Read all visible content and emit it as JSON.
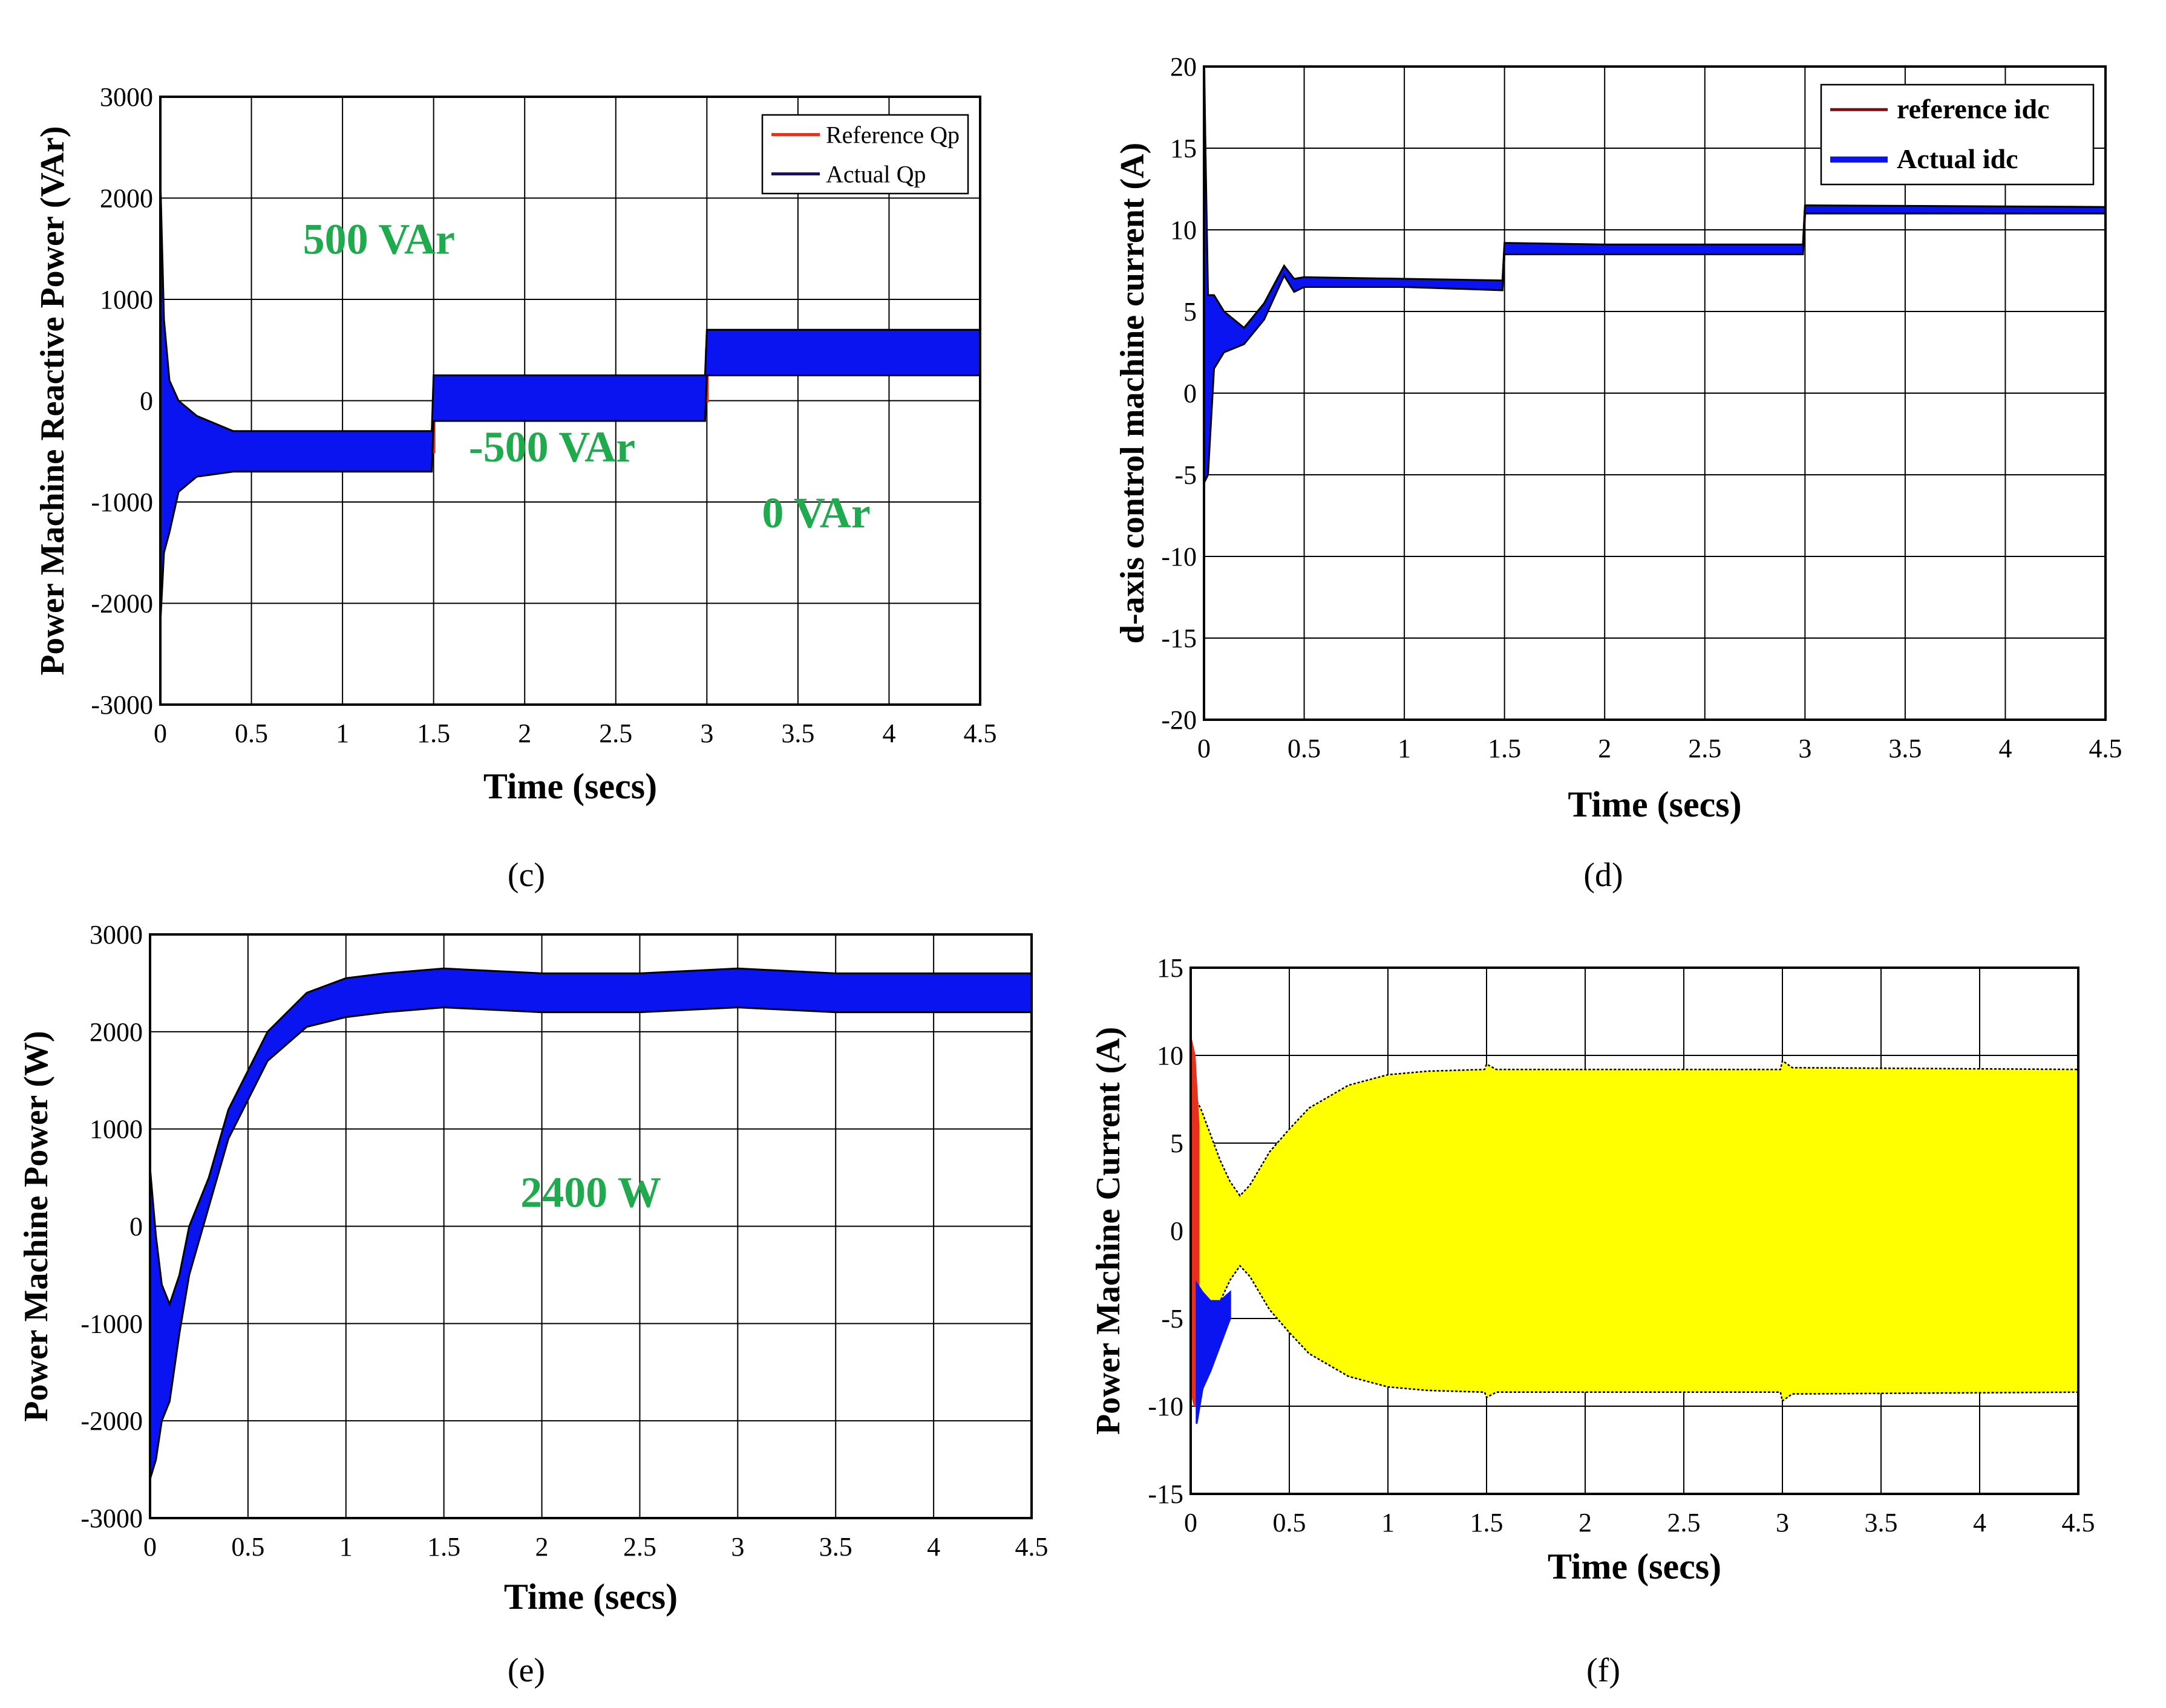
{
  "figure": {
    "panel_labels": [
      "(c)",
      "(d)",
      "(e)",
      "(f)"
    ]
  },
  "colors": {
    "actual": "#0a14f0",
    "actual_edge": "#000000",
    "reference": "#e8301e",
    "annotation": "#1faa4e",
    "yellow_fill": "#ffff00",
    "grid": "#000000"
  },
  "chart_data": [
    {
      "id": "c",
      "type": "line",
      "title": "",
      "xlabel": "Time (secs)",
      "ylabel": "Power Machine Reactive Power (VAr)",
      "xlim": [
        0,
        4.5
      ],
      "ylim": [
        -3000,
        3000
      ],
      "xticks": [
        0,
        0.5,
        1,
        1.5,
        2,
        2.5,
        3,
        3.5,
        4,
        4.5
      ],
      "yticks": [
        -3000,
        -2000,
        -1000,
        0,
        1000,
        2000,
        3000
      ],
      "xtick_labels": [
        "0",
        "0.5",
        "1",
        "1.5",
        "2",
        "2.5",
        "3",
        "3.5",
        "4",
        "4.5"
      ],
      "ytick_labels": [
        "-3000",
        "-2000",
        "-1000",
        "0",
        "1000",
        "2000",
        "3000"
      ],
      "grid": true,
      "legend": {
        "position": "top-right",
        "entries": [
          "Reference Qp",
          "Actual Qp"
        ]
      },
      "annotations": [
        {
          "text": "500 VAr",
          "x": 1.2,
          "y": 1450
        },
        {
          "text": "-500 VAr",
          "x": 2.15,
          "y": -600
        },
        {
          "text": "0 VAr",
          "x": 3.6,
          "y": -1250
        }
      ],
      "series": [
        {
          "name": "Reference Qp",
          "x": [
            0,
            1.5,
            1.5,
            3,
            3,
            4.5
          ],
          "y": [
            -500,
            -500,
            0,
            0,
            500,
            500
          ]
        },
        {
          "name": "Actual Qp",
          "kind": "band",
          "x": [
            0,
            0.02,
            0.05,
            0.1,
            0.2,
            0.4,
            0.6,
            1.0,
            1.49,
            1.5,
            2.0,
            2.5,
            2.99,
            3.0,
            3.5,
            4.0,
            4.5
          ],
          "upper": [
            2200,
            800,
            200,
            0,
            -150,
            -300,
            -300,
            -300,
            -300,
            250,
            250,
            250,
            250,
            700,
            700,
            700,
            700
          ],
          "lower": [
            -2200,
            -1500,
            -1300,
            -900,
            -750,
            -700,
            -700,
            -700,
            -700,
            -200,
            -200,
            -200,
            -200,
            250,
            250,
            250,
            250
          ]
        }
      ]
    },
    {
      "id": "d",
      "type": "line",
      "title": "",
      "xlabel": "Time (secs)",
      "ylabel": "d-axis control machine current (A)",
      "xlim": [
        0,
        4.5
      ],
      "ylim": [
        -20,
        20
      ],
      "xticks": [
        0,
        0.5,
        1,
        1.5,
        2,
        2.5,
        3,
        3.5,
        4,
        4.5
      ],
      "yticks": [
        -20,
        -15,
        -10,
        -5,
        0,
        5,
        10,
        15,
        20
      ],
      "xtick_labels": [
        "0",
        "0.5",
        "1",
        "1.5",
        "2",
        "2.5",
        "3",
        "3.5",
        "4",
        "4.5"
      ],
      "ytick_labels": [
        "-20",
        "-15",
        "-10",
        "-5",
        "0",
        "5",
        "10",
        "15",
        "20"
      ],
      "grid": true,
      "legend": {
        "position": "top-right",
        "entries": [
          "reference idc",
          "Actual idc"
        ]
      },
      "annotations": [],
      "series": [
        {
          "name": "reference idc",
          "x": [
            0,
            0.02,
            0.05,
            0.1,
            0.2,
            0.3,
            0.4,
            0.45,
            0.5,
            1.0,
            1.49,
            1.5,
            2.0,
            2.99,
            3.0,
            4.5
          ],
          "y": [
            20,
            2,
            5,
            4,
            3.5,
            5,
            7.5,
            6.5,
            6.8,
            6.8,
            6.6,
            8.8,
            8.8,
            8.8,
            11.2,
            11.2
          ]
        },
        {
          "name": "Actual idc",
          "kind": "band",
          "x": [
            0,
            0.02,
            0.05,
            0.1,
            0.2,
            0.3,
            0.4,
            0.45,
            0.5,
            1.0,
            1.49,
            1.5,
            2.0,
            2.99,
            3.0,
            4.5
          ],
          "upper": [
            20,
            6,
            6,
            5,
            4,
            5.5,
            7.8,
            7.0,
            7.1,
            7.0,
            6.9,
            9.2,
            9.1,
            9.1,
            11.5,
            11.4
          ],
          "lower": [
            -5.5,
            -5,
            1.5,
            2.5,
            3,
            4.5,
            7.2,
            6.2,
            6.5,
            6.5,
            6.3,
            8.5,
            8.5,
            8.5,
            11.0,
            11.0
          ]
        }
      ]
    },
    {
      "id": "e",
      "type": "line",
      "title": "",
      "xlabel": "Time (secs)",
      "ylabel": "Power Machine Power (W)",
      "xlim": [
        0,
        4.5
      ],
      "ylim": [
        -3000,
        3000
      ],
      "xticks": [
        0,
        0.5,
        1,
        1.5,
        2,
        2.5,
        3,
        3.5,
        4,
        4.5
      ],
      "yticks": [
        -3000,
        -2000,
        -1000,
        0,
        1000,
        2000,
        3000
      ],
      "xtick_labels": [
        "0",
        "0.5",
        "1",
        "1.5",
        "2",
        "2.5",
        "3",
        "3.5",
        "4",
        "4.5"
      ],
      "ytick_labels": [
        "-3000",
        "-2000",
        "-1000",
        "0",
        "1000",
        "2000",
        "3000"
      ],
      "grid": true,
      "legend": null,
      "annotations": [
        {
          "text": "2400 W",
          "x": 2.25,
          "y": 200
        }
      ],
      "series": [
        {
          "name": "Actual power",
          "kind": "band",
          "x": [
            0,
            0.03,
            0.06,
            0.1,
            0.15,
            0.2,
            0.3,
            0.4,
            0.5,
            0.6,
            0.8,
            1.0,
            1.2,
            1.5,
            2.0,
            2.5,
            3.0,
            3.5,
            4.0,
            4.5
          ],
          "upper": [
            600,
            -100,
            -600,
            -800,
            -500,
            0,
            500,
            1200,
            1600,
            2000,
            2400,
            2550,
            2600,
            2650,
            2600,
            2600,
            2650,
            2600,
            2600,
            2600
          ],
          "lower": [
            -2600,
            -2400,
            -2000,
            -1800,
            -1100,
            -500,
            200,
            900,
            1300,
            1700,
            2050,
            2150,
            2200,
            2250,
            2200,
            2200,
            2250,
            2200,
            2200,
            2200
          ]
        }
      ]
    },
    {
      "id": "f",
      "type": "area",
      "title": "",
      "xlabel": "Time (secs)",
      "ylabel": "Power Machine Current (A)",
      "xlim": [
        0,
        4.5
      ],
      "ylim": [
        -15,
        15
      ],
      "xticks": [
        0,
        0.5,
        1,
        1.5,
        2,
        2.5,
        3,
        3.5,
        4,
        4.5
      ],
      "yticks": [
        -15,
        -10,
        -5,
        0,
        5,
        10,
        15
      ],
      "xtick_labels": [
        "0",
        "0.5",
        "1",
        "1.5",
        "2",
        "2.5",
        "3",
        "3.5",
        "4",
        "4.5"
      ],
      "ytick_labels": [
        "-15",
        "-10",
        "-5",
        "0",
        "5",
        "10",
        "15"
      ],
      "grid": true,
      "legend": null,
      "annotations": [],
      "series": [
        {
          "name": "Current envelope",
          "kind": "band",
          "x": [
            0,
            0.05,
            0.1,
            0.15,
            0.2,
            0.25,
            0.3,
            0.4,
            0.5,
            0.6,
            0.8,
            1.0,
            1.2,
            1.49,
            1.5,
            1.55,
            2.0,
            2.99,
            3.0,
            3.05,
            4.5
          ],
          "upper": [
            8,
            7,
            5.5,
            4,
            2.8,
            2,
            2.6,
            4.5,
            5.8,
            7,
            8.3,
            8.9,
            9.1,
            9.2,
            9.5,
            9.2,
            9.2,
            9.2,
            9.7,
            9.3,
            9.2
          ],
          "lower": [
            -8,
            -7,
            -5.5,
            -4,
            -2.8,
            -2,
            -2.6,
            -4.5,
            -5.8,
            -7,
            -8.3,
            -8.9,
            -9.1,
            -9.2,
            -9.5,
            -9.2,
            -9.2,
            -9.2,
            -9.7,
            -9.3,
            -9.2
          ]
        },
        {
          "name": "Transient red",
          "kind": "band",
          "x": [
            0,
            0.02,
            0.04
          ],
          "upper": [
            11,
            10,
            6
          ],
          "lower": [
            -9,
            -10,
            -6
          ]
        },
        {
          "name": "Transient blue",
          "kind": "band",
          "x": [
            0.03,
            0.06,
            0.1,
            0.15,
            0.2
          ],
          "upper": [
            -3,
            -3.5,
            -4,
            -4,
            -3.5
          ],
          "lower": [
            -11,
            -9,
            -8,
            -6.5,
            -5
          ]
        }
      ]
    }
  ]
}
